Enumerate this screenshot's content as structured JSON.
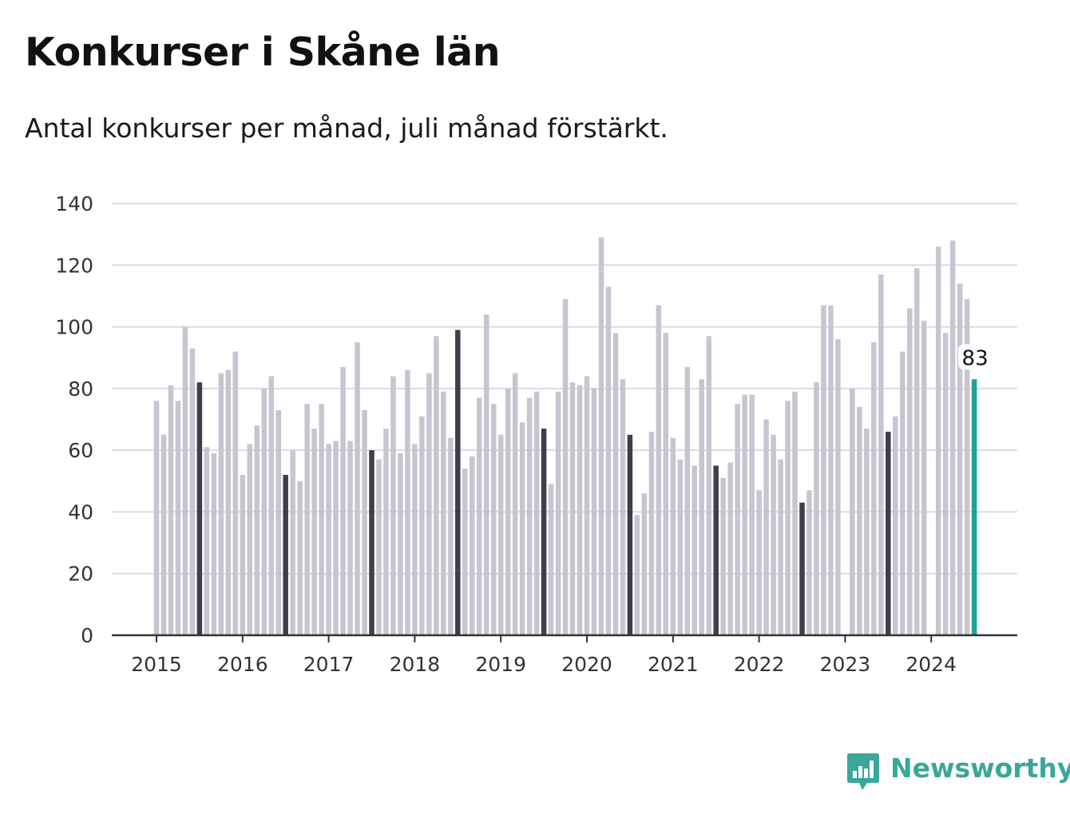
{
  "title": "Konkurser i Skåne län",
  "subtitle": "Antal konkurser per månad, juli månad förstärkt.",
  "brand": {
    "name": "Newsworthy",
    "icon": "bar-chart-speech-bubble-icon",
    "color": "#3aa79a"
  },
  "colors": {
    "bar": "#c6c6d0",
    "july": "#3f3e4b",
    "latest": "#1aa39a",
    "grid": "#dcdce0",
    "axis": "#333333"
  },
  "chart_data": {
    "type": "bar",
    "title": "Konkurser i Skåne län",
    "subtitle": "Antal konkurser per månad, juli månad förstärkt.",
    "xlabel": "",
    "ylabel": "",
    "ylim": [
      0,
      140
    ],
    "yticks": [
      "0",
      "20",
      "40",
      "60",
      "80",
      "100",
      "120",
      "140"
    ],
    "x_tick_labels": [
      "2015",
      "2016",
      "2017",
      "2018",
      "2019",
      "2020",
      "2021",
      "2022",
      "2023",
      "2024"
    ],
    "grid": true,
    "legend": "none",
    "start_month": "2015-01",
    "highlight": "July of each year (dark), latest month (teal)",
    "latest_label": "83",
    "values": [
      76,
      65,
      81,
      76,
      100,
      93,
      82,
      61,
      59,
      85,
      86,
      92,
      52,
      62,
      68,
      80,
      84,
      73,
      52,
      60,
      50,
      75,
      67,
      75,
      62,
      63,
      87,
      63,
      95,
      73,
      60,
      57,
      67,
      84,
      59,
      86,
      62,
      71,
      85,
      97,
      79,
      64,
      99,
      54,
      58,
      77,
      104,
      75,
      65,
      80,
      85,
      69,
      77,
      79,
      67,
      49,
      79,
      109,
      82,
      81,
      84,
      80,
      129,
      113,
      98,
      83,
      65,
      39,
      46,
      66,
      107,
      98,
      64,
      57,
      87,
      55,
      83,
      97,
      55,
      51,
      56,
      75,
      78,
      78,
      47,
      70,
      65,
      57,
      76,
      79,
      43,
      47,
      82,
      107,
      107,
      96,
      0,
      80,
      74,
      67,
      95,
      117,
      66,
      71,
      92,
      106,
      119,
      102,
      0,
      126,
      98,
      128,
      114,
      109,
      83
    ]
  }
}
